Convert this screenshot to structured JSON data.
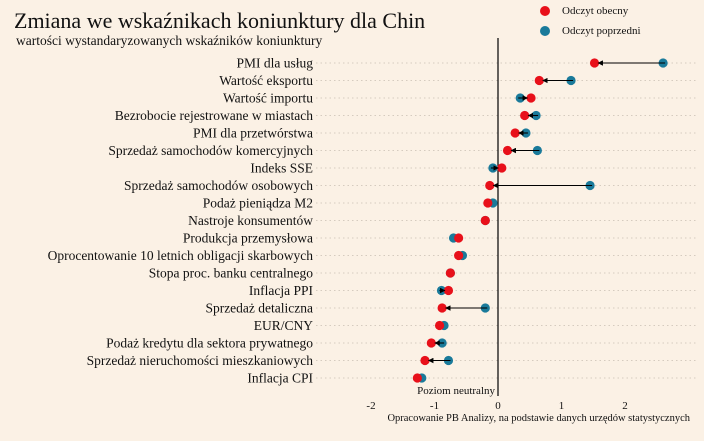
{
  "chart_data": {
    "type": "dot",
    "title": "Zmiana we wskaźnikach koniunktury dla Chin",
    "subtitle": "wartości wystandaryzowanych wskaźników koniunktury",
    "series": [
      {
        "name": "Odczyt obecny",
        "color": "#e8101a"
      },
      {
        "name": "Odczyt poprzedni",
        "color": "#1a7a9a"
      }
    ],
    "x_ticks": [
      "-2",
      "-1",
      "0",
      "1",
      "2"
    ],
    "xlim": [
      -2.6,
      2.8
    ],
    "neutral_label": "Poziom neutralny",
    "source": "Opracowanie PB Analizy, na podstawie danych urzędów statystycznych",
    "items": [
      {
        "label": "PMI dla usług",
        "current": 1.52,
        "previous": 2.6,
        "arrow": true
      },
      {
        "label": "Wartość eksportu",
        "current": 0.65,
        "previous": 1.15,
        "arrow": true
      },
      {
        "label": "Wartość importu",
        "current": 0.52,
        "previous": 0.35,
        "arrow": true
      },
      {
        "label": "Bezrobocie rejestrowane w miastach",
        "current": 0.42,
        "previous": 0.6,
        "arrow": true
      },
      {
        "label": "PMI dla przetwórstwa",
        "current": 0.27,
        "previous": 0.44,
        "arrow": true
      },
      {
        "label": "Sprzedaż samochodów komercyjnych",
        "current": 0.15,
        "previous": 0.62,
        "arrow": true
      },
      {
        "label": "Indeks SSE",
        "current": 0.06,
        "previous": -0.08,
        "arrow": true
      },
      {
        "label": "Sprzedaż samochodów osobowych",
        "current": -0.13,
        "previous": 1.45,
        "arrow": true
      },
      {
        "label": "Podaż pieniądza M2",
        "current": -0.16,
        "previous": -0.08,
        "arrow": false
      },
      {
        "label": "Nastroje konsumentów",
        "current": -0.2,
        "previous": -0.2,
        "arrow": false
      },
      {
        "label": "Produkcja przemysłowa",
        "current": -0.62,
        "previous": -0.7,
        "arrow": false
      },
      {
        "label": "Oprocentowanie 10 letnich obligacji skarbowych",
        "current": -0.62,
        "previous": -0.56,
        "arrow": false
      },
      {
        "label": "Stopa proc. banku centralnego",
        "current": -0.75,
        "previous": -0.75,
        "arrow": false
      },
      {
        "label": "Inflacja PPI",
        "current": -0.78,
        "previous": -0.89,
        "arrow": true
      },
      {
        "label": "Sprzedaż detaliczna",
        "current": -0.88,
        "previous": -0.2,
        "arrow": true
      },
      {
        "label": "EUR/CNY",
        "current": -0.92,
        "previous": -0.85,
        "arrow": false
      },
      {
        "label": "Podaż kredytu dla sektora prywatnego",
        "current": -1.05,
        "previous": -0.88,
        "arrow": true
      },
      {
        "label": "Sprzedaż nieruchomości mieszkaniowych",
        "current": -1.15,
        "previous": -0.78,
        "arrow": true
      },
      {
        "label": "Inflacja CPI",
        "current": -1.27,
        "previous": -1.2,
        "arrow": false
      }
    ]
  }
}
